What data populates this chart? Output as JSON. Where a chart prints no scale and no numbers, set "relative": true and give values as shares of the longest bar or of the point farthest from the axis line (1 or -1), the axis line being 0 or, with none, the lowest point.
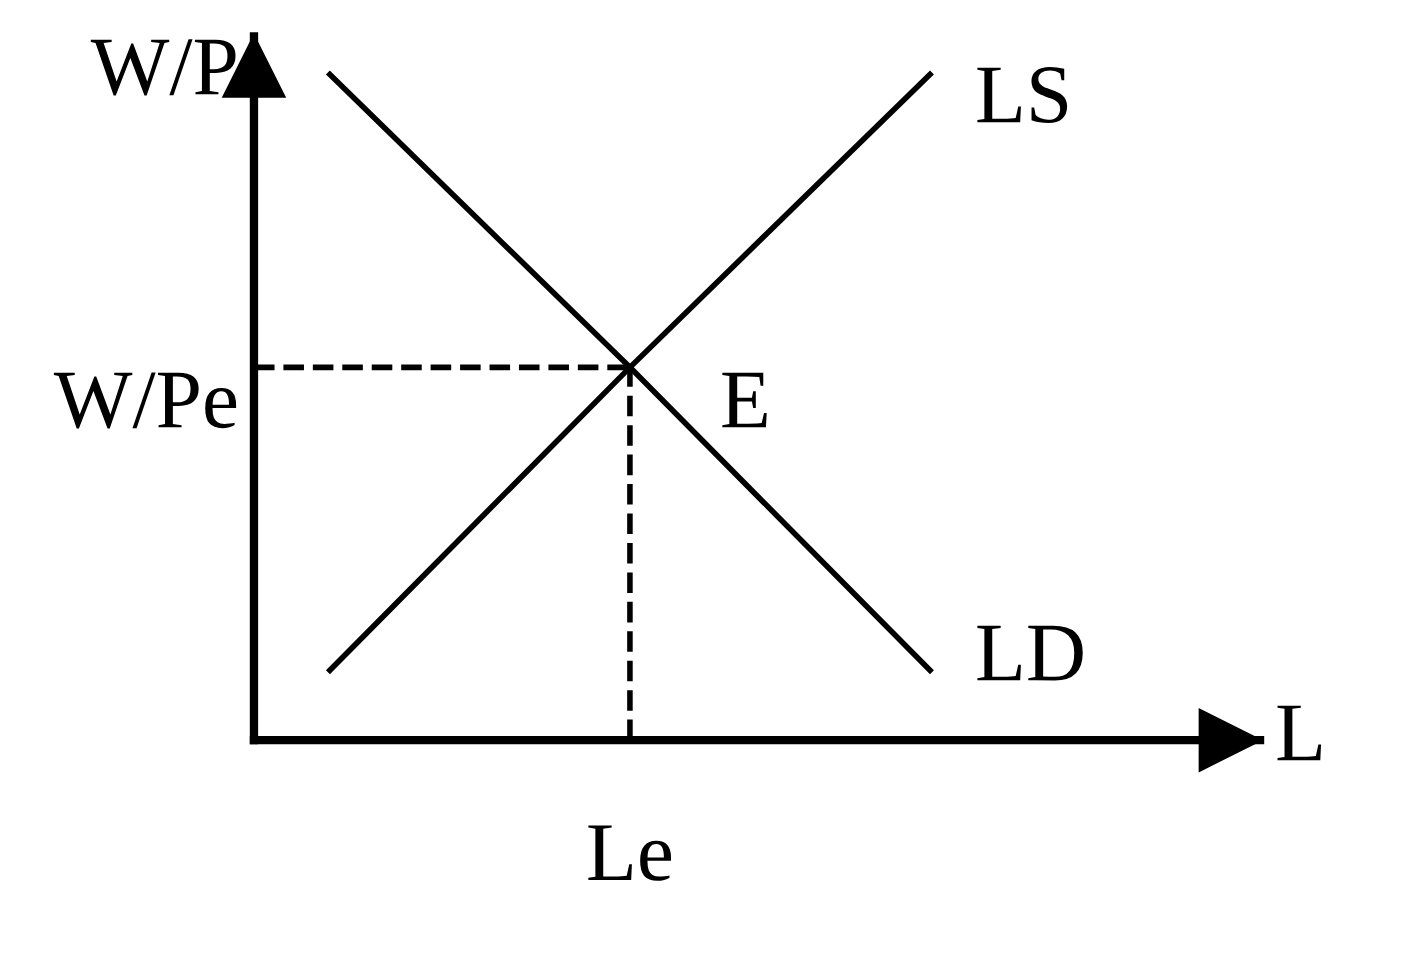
{
  "chart_data": {
    "type": "line",
    "relative": true,
    "xlabel": "L",
    "ylabel": "W/P",
    "categories": [
      null,
      null,
      null
    ],
    "series": [
      {
        "name": "LS",
        "color": "#000000",
        "values": [
          0.105,
          0.56,
          1
        ]
      },
      {
        "name": "LD",
        "color": "#000000",
        "values": [
          1,
          0.56,
          0.105
        ]
      }
    ],
    "ref_lines": [
      {
        "axis": "y",
        "value": 0.56,
        "label": "W/Pe",
        "color": "#000000",
        "line_style": "dashed"
      }
    ],
    "annotations": [
      "E",
      "Le"
    ],
    "marker": "none",
    "line_style": "solid",
    "grid": false,
    "legend": false
  }
}
